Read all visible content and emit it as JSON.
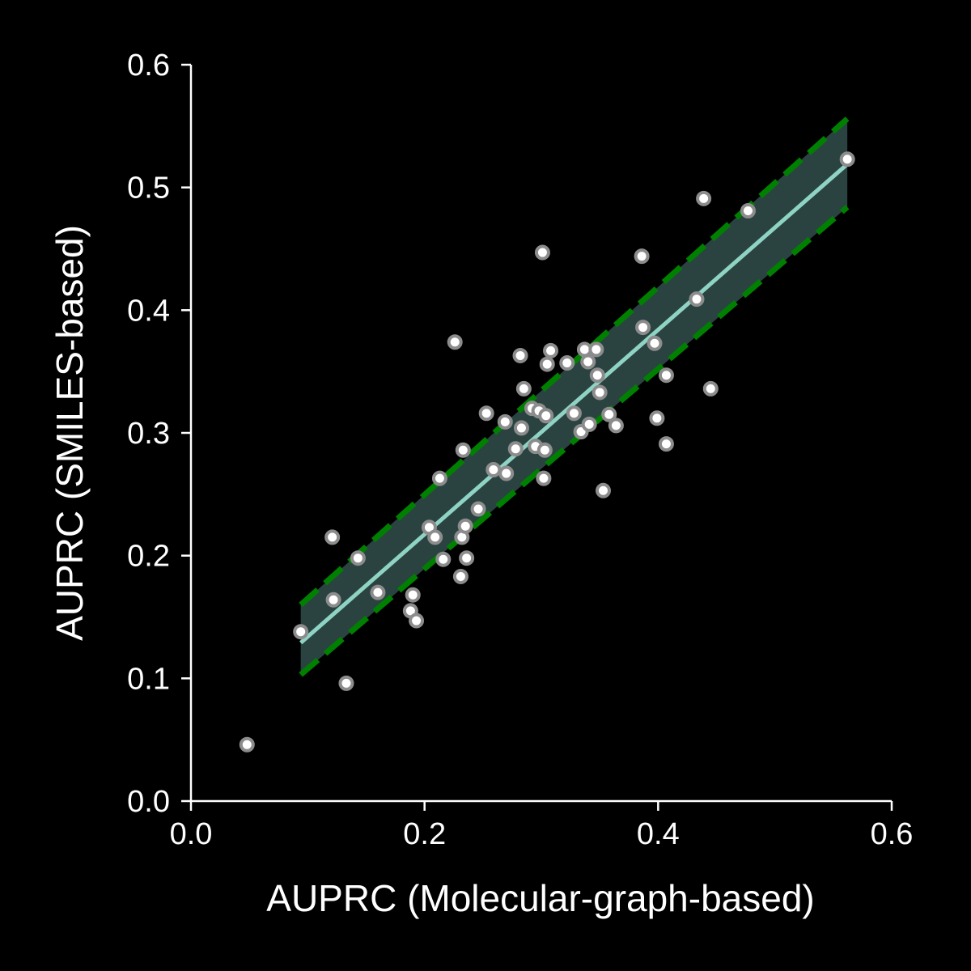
{
  "chart_data": {
    "type": "scatter",
    "title": "",
    "xlabel": "AUPRC (Molecular-graph-based)",
    "ylabel": "AUPRC (SMILES-based)",
    "xlim": [
      0.0,
      0.6
    ],
    "ylim": [
      0.0,
      0.6
    ],
    "x_ticks": [
      "0.0",
      "0.2",
      "0.4",
      "0.6"
    ],
    "y_ticks": [
      "0.0",
      "0.1",
      "0.2",
      "0.3",
      "0.4",
      "0.5",
      "0.6"
    ],
    "grid": false,
    "background_color": "#000000",
    "point_color": "#ffffff",
    "point_edge_color": "#8c8c8c",
    "fit_line_color": "#8fd3c5",
    "ci_band_color": "#2f4a48",
    "ci_line_color": "#008000",
    "points": [
      [
        0.048,
        0.046
      ],
      [
        0.094,
        0.138
      ],
      [
        0.121,
        0.215
      ],
      [
        0.122,
        0.164
      ],
      [
        0.133,
        0.096
      ],
      [
        0.143,
        0.198
      ],
      [
        0.16,
        0.17
      ],
      [
        0.188,
        0.155
      ],
      [
        0.19,
        0.168
      ],
      [
        0.193,
        0.147
      ],
      [
        0.204,
        0.223
      ],
      [
        0.209,
        0.215
      ],
      [
        0.213,
        0.263
      ],
      [
        0.216,
        0.197
      ],
      [
        0.226,
        0.374
      ],
      [
        0.231,
        0.183
      ],
      [
        0.232,
        0.215
      ],
      [
        0.233,
        0.286
      ],
      [
        0.235,
        0.224
      ],
      [
        0.236,
        0.198
      ],
      [
        0.246,
        0.238
      ],
      [
        0.253,
        0.316
      ],
      [
        0.259,
        0.27
      ],
      [
        0.269,
        0.309
      ],
      [
        0.27,
        0.267
      ],
      [
        0.278,
        0.287
      ],
      [
        0.282,
        0.363
      ],
      [
        0.283,
        0.304
      ],
      [
        0.285,
        0.336
      ],
      [
        0.292,
        0.32
      ],
      [
        0.295,
        0.289
      ],
      [
        0.298,
        0.318
      ],
      [
        0.301,
        0.447
      ],
      [
        0.302,
        0.263
      ],
      [
        0.303,
        0.286
      ],
      [
        0.304,
        0.314
      ],
      [
        0.305,
        0.356
      ],
      [
        0.308,
        0.367
      ],
      [
        0.322,
        0.357
      ],
      [
        0.328,
        0.316
      ],
      [
        0.334,
        0.301
      ],
      [
        0.337,
        0.368
      ],
      [
        0.34,
        0.358
      ],
      [
        0.341,
        0.307
      ],
      [
        0.347,
        0.368
      ],
      [
        0.348,
        0.347
      ],
      [
        0.35,
        0.333
      ],
      [
        0.353,
        0.253
      ],
      [
        0.358,
        0.315
      ],
      [
        0.364,
        0.306
      ],
      [
        0.386,
        0.444
      ],
      [
        0.387,
        0.386
      ],
      [
        0.397,
        0.373
      ],
      [
        0.399,
        0.312
      ],
      [
        0.407,
        0.291
      ],
      [
        0.407,
        0.347
      ],
      [
        0.433,
        0.409
      ],
      [
        0.439,
        0.491
      ],
      [
        0.445,
        0.336
      ],
      [
        0.477,
        0.481
      ],
      [
        0.562,
        0.523
      ]
    ],
    "fit": {
      "x_start": 0.094,
      "x_end": 0.562,
      "y_start": 0.129,
      "y_end": 0.519
    },
    "ci": {
      "upper_start": 0.16,
      "upper_end": 0.556,
      "lower_start": 0.103,
      "lower_end": 0.484
    }
  }
}
